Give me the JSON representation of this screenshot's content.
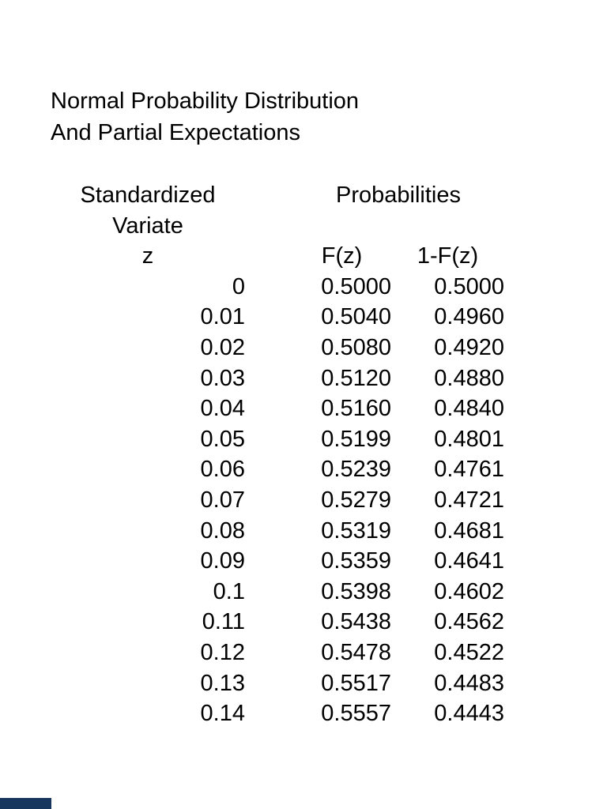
{
  "page": {
    "background_color": "#ffffff",
    "text_color": "#000000"
  },
  "title": {
    "line1": "Normal Probability Distribution",
    "line2": "And Partial Expectations"
  },
  "table": {
    "header": {
      "variate_group_line1": "Standardized",
      "variate_group_line2": "Variate",
      "probabilities_group": "Probabilities",
      "col_z": "z",
      "col_fz": "F(z)",
      "col_one_minus_fz": "1-F(z)"
    },
    "rows": [
      {
        "z": "0",
        "fz": "0.5000",
        "one_minus_fz": "0.5000"
      },
      {
        "z": "0.01",
        "fz": "0.5040",
        "one_minus_fz": "0.4960"
      },
      {
        "z": "0.02",
        "fz": "0.5080",
        "one_minus_fz": "0.4920"
      },
      {
        "z": "0.03",
        "fz": "0.5120",
        "one_minus_fz": "0.4880"
      },
      {
        "z": "0.04",
        "fz": "0.5160",
        "one_minus_fz": "0.4840"
      },
      {
        "z": "0.05",
        "fz": "0.5199",
        "one_minus_fz": "0.4801"
      },
      {
        "z": "0.06",
        "fz": "0.5239",
        "one_minus_fz": "0.4761"
      },
      {
        "z": "0.07",
        "fz": "0.5279",
        "one_minus_fz": "0.4721"
      },
      {
        "z": "0.08",
        "fz": "0.5319",
        "one_minus_fz": "0.4681"
      },
      {
        "z": "0.09",
        "fz": "0.5359",
        "one_minus_fz": "0.4641"
      },
      {
        "z": "0.1",
        "fz": "0.5398",
        "one_minus_fz": "0.4602"
      },
      {
        "z": "0.11",
        "fz": "0.5438",
        "one_minus_fz": "0.4562"
      },
      {
        "z": "0.12",
        "fz": "0.5478",
        "one_minus_fz": "0.4522"
      },
      {
        "z": "0.13",
        "fz": "0.5517",
        "one_minus_fz": "0.4483"
      },
      {
        "z": "0.14",
        "fz": "0.5557",
        "one_minus_fz": "0.4443"
      }
    ]
  },
  "footer": {
    "corner_bar_color": "#17365d"
  }
}
